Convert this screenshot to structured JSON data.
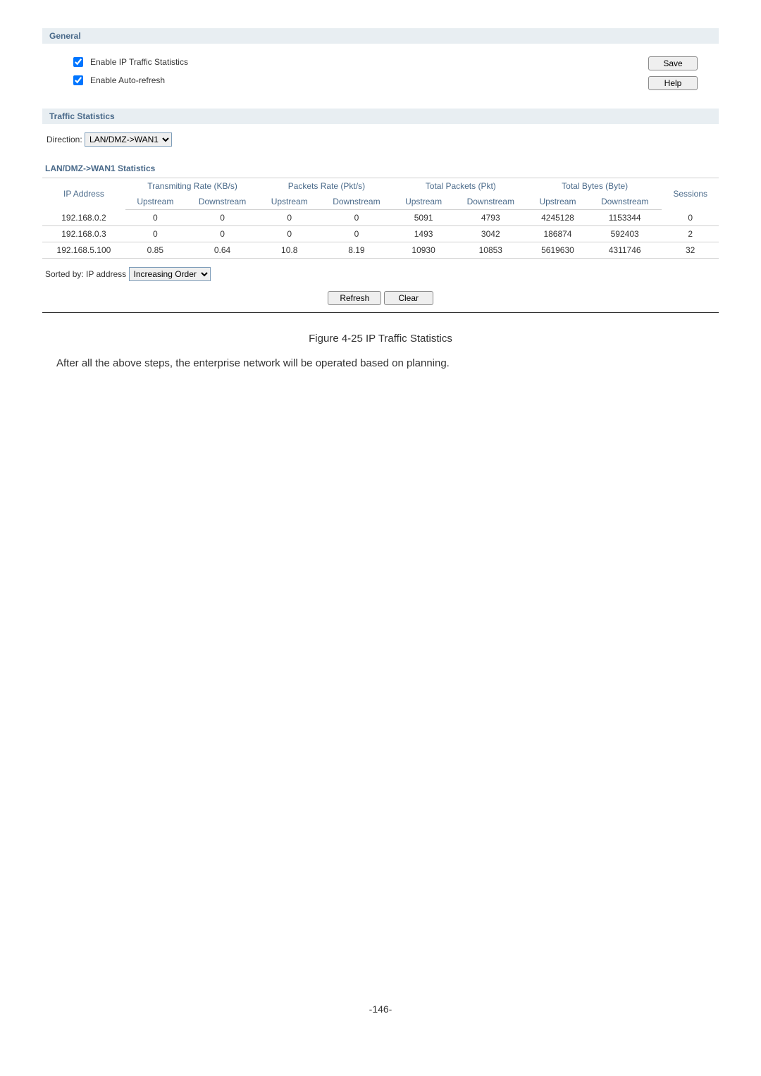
{
  "general": {
    "title": "General",
    "enableTraffic": {
      "checked": true,
      "label": "Enable IP Traffic Statistics"
    },
    "enableAutoRefresh": {
      "checked": true,
      "label": "Enable Auto-refresh"
    },
    "saveBtn": "Save",
    "helpBtn": "Help"
  },
  "traffic": {
    "title": "Traffic Statistics",
    "directionLabel": "Direction:",
    "directionValue": "LAN/DMZ->WAN1"
  },
  "stats": {
    "sectionTitle": "LAN/DMZ->WAN1 Statistics",
    "headers": {
      "ip": "IP Address",
      "transRate": "Transmiting Rate (KB/s)",
      "pktRate": "Packets Rate (Pkt/s)",
      "totalPkt": "Total Packets (Pkt)",
      "totalBytes": "Total Bytes (Byte)",
      "sessions": "Sessions",
      "up": "Upstream",
      "down": "Downstream"
    },
    "rows": [
      {
        "ip": "192.168.0.2",
        "tu": "0",
        "td": "0",
        "pu": "0",
        "pd": "0",
        "tpu": "5091",
        "tpd": "4793",
        "tbu": "4245128",
        "tbd": "1153344",
        "s": "0"
      },
      {
        "ip": "192.168.0.3",
        "tu": "0",
        "td": "0",
        "pu": "0",
        "pd": "0",
        "tpu": "1493",
        "tpd": "3042",
        "tbu": "186874",
        "tbd": "592403",
        "s": "2"
      },
      {
        "ip": "192.168.5.100",
        "tu": "0.85",
        "td": "0.64",
        "pu": "10.8",
        "pd": "8.19",
        "tpu": "10930",
        "tpd": "10853",
        "tbu": "5619630",
        "tbd": "4311746",
        "s": "32"
      }
    ],
    "sortedByLabel": "Sorted by: IP address",
    "sortOrder": "Increasing Order",
    "refreshBtn": "Refresh",
    "clearBtn": "Clear"
  },
  "caption": "Figure 4-25 IP Traffic Statistics",
  "afterText": "After all the above steps, the enterprise network will be operated based on planning.",
  "pageNum": "-146-",
  "colors": {
    "sectionHeaderBg": "#e8eef2",
    "headingColor": "#4a6a8a",
    "border": "#d0d0d0"
  }
}
